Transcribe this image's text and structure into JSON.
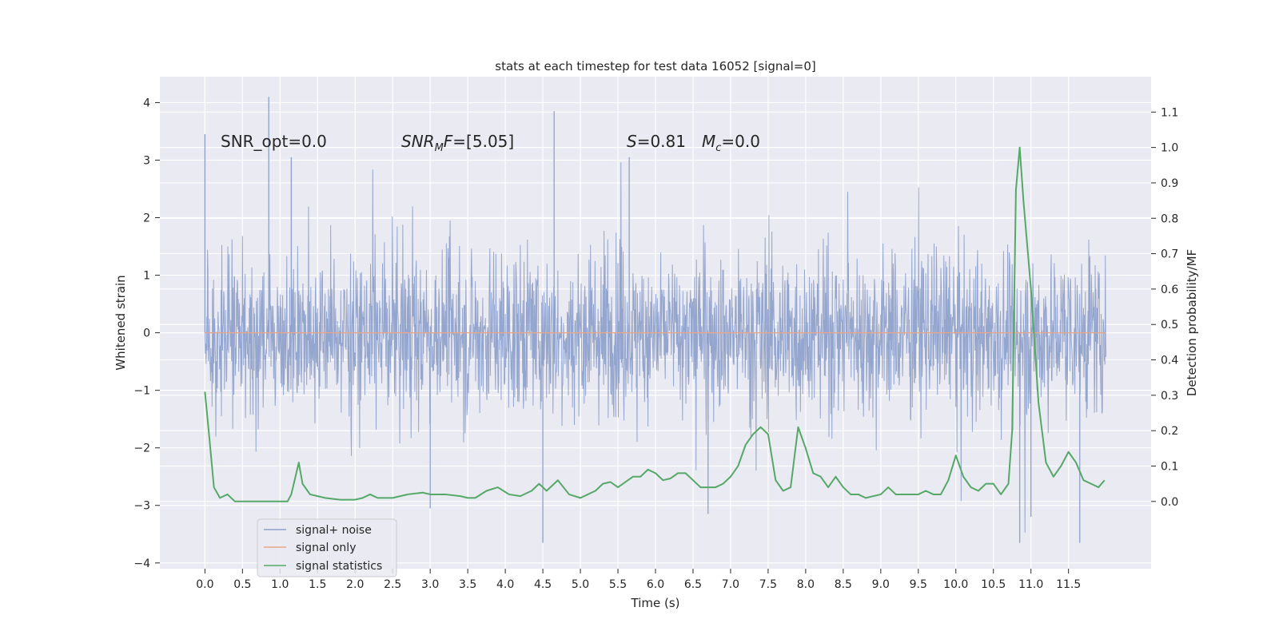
{
  "chart_data": {
    "type": "line",
    "title": "stats at each timestep for test data 16052 [signal=0]",
    "xlabel": "Time (s)",
    "ylabel": "Whitened strain",
    "y2label": "Detection probability/MF",
    "xlim": [
      -0.6,
      12.6
    ],
    "ylim": [
      -4.1,
      4.45
    ],
    "y2lim": [
      -0.19,
      1.2
    ],
    "x_ticks": [
      0.0,
      0.5,
      1.0,
      1.5,
      2.0,
      2.5,
      3.0,
      3.5,
      4.0,
      4.5,
      5.0,
      5.5,
      6.0,
      6.5,
      7.0,
      7.5,
      8.0,
      8.5,
      9.0,
      9.5,
      10.0,
      10.5,
      11.0,
      11.5
    ],
    "x_tick_labels": [
      "0.0",
      "0.5",
      "1.0",
      "1.5",
      "2.0",
      "2.5",
      "3.0",
      "3.5",
      "4.0",
      "4.5",
      "5.0",
      "5.5",
      "6.0",
      "6.5",
      "7.0",
      "7.5",
      "8.0",
      "8.5",
      "9.0",
      "9.5",
      "10.0",
      "10.5",
      "11.0",
      "11.5"
    ],
    "y_ticks": [
      4,
      3,
      2,
      1,
      0,
      -1,
      -2,
      -3,
      -4
    ],
    "y_tick_labels": [
      "4",
      "3",
      "2",
      "1",
      "0",
      "−1",
      "−2",
      "−3",
      "−4"
    ],
    "y2_ticks": [
      1.1,
      1.0,
      0.9,
      0.8,
      0.7,
      0.6,
      0.5,
      0.4,
      0.3,
      0.2,
      0.1,
      0.0
    ],
    "y2_tick_labels": [
      "1.1",
      "1.0",
      "0.9",
      "0.8",
      "0.7",
      "0.6",
      "0.5",
      "0.4",
      "0.3",
      "0.2",
      "0.1",
      "0.0"
    ],
    "annotations": {
      "snr_opt": "SNR_opt=0.0",
      "snr_mf_main": "SNR",
      "snr_mf_sub": "M",
      "snr_mf_rest": "F",
      "snr_mf_value": "=[5.05]",
      "s_sym": "S",
      "s_value": "=0.81",
      "mc_main": "M",
      "mc_sub": "c",
      "mc_value": "=0.0"
    },
    "legend": {
      "placement": "bottom-left",
      "entries": [
        "signal+ noise",
        "signal only",
        "signal statistics"
      ]
    },
    "series": [
      {
        "name": "signal+ noise",
        "axis": "left",
        "kind": "noise",
        "time_range": [
          0.0,
          12.0
        ],
        "duration_s": 12.0,
        "typical_range": [
          -1.3,
          1.4
        ],
        "max": 4.1,
        "min": -3.7,
        "spikes": [
          {
            "t": 0.0,
            "v": 3.45
          },
          {
            "t": 0.85,
            "v": 4.1
          },
          {
            "t": 1.15,
            "v": 3.05
          },
          {
            "t": 4.65,
            "v": 3.85
          },
          {
            "t": 5.65,
            "v": 3.05
          },
          {
            "t": 4.5,
            "v": -3.65
          },
          {
            "t": 10.85,
            "v": -3.65
          },
          {
            "t": 11.0,
            "v": -3.2
          },
          {
            "t": 11.65,
            "v": -3.65
          },
          {
            "t": 6.7,
            "v": -3.15
          },
          {
            "t": 3.0,
            "v": -3.05
          }
        ]
      },
      {
        "name": "signal only",
        "axis": "left",
        "x": [
          0.0,
          12.0
        ],
        "y": [
          0.0,
          0.0
        ]
      },
      {
        "name": "signal statistics",
        "axis": "right",
        "x": [
          0.0,
          0.05,
          0.12,
          0.2,
          0.25,
          0.3,
          0.4,
          0.5,
          0.6,
          0.7,
          0.8,
          0.9,
          1.0,
          1.1,
          1.15,
          1.25,
          1.3,
          1.4,
          1.5,
          1.6,
          1.8,
          2.0,
          2.1,
          2.2,
          2.3,
          2.5,
          2.7,
          2.9,
          3.0,
          3.2,
          3.4,
          3.5,
          3.6,
          3.75,
          3.9,
          4.05,
          4.2,
          4.35,
          4.45,
          4.55,
          4.7,
          4.85,
          5.0,
          5.1,
          5.2,
          5.3,
          5.4,
          5.5,
          5.6,
          5.7,
          5.8,
          5.9,
          6.0,
          6.1,
          6.2,
          6.3,
          6.4,
          6.5,
          6.6,
          6.8,
          6.9,
          7.0,
          7.1,
          7.2,
          7.3,
          7.4,
          7.5,
          7.6,
          7.7,
          7.8,
          7.9,
          8.0,
          8.1,
          8.2,
          8.3,
          8.4,
          8.5,
          8.6,
          8.7,
          8.8,
          9.0,
          9.1,
          9.2,
          9.3,
          9.5,
          9.6,
          9.7,
          9.8,
          9.9,
          10.0,
          10.1,
          10.2,
          10.3,
          10.4,
          10.5,
          10.6,
          10.7,
          10.75,
          10.8,
          10.85,
          10.9,
          11.0,
          11.1,
          11.2,
          11.3,
          11.4,
          11.5,
          11.6,
          11.7,
          11.8,
          11.9,
          11.98
        ],
        "y": [
          0.31,
          0.2,
          0.04,
          0.01,
          0.015,
          0.02,
          0.0,
          0.0,
          0.0,
          0.0,
          0.0,
          0.0,
          0.0,
          0.0,
          0.02,
          0.11,
          0.05,
          0.02,
          0.015,
          0.01,
          0.005,
          0.005,
          0.01,
          0.02,
          0.01,
          0.01,
          0.02,
          0.025,
          0.02,
          0.02,
          0.015,
          0.01,
          0.01,
          0.03,
          0.04,
          0.02,
          0.015,
          0.03,
          0.05,
          0.03,
          0.06,
          0.02,
          0.01,
          0.02,
          0.03,
          0.05,
          0.055,
          0.04,
          0.055,
          0.07,
          0.07,
          0.09,
          0.08,
          0.06,
          0.065,
          0.08,
          0.08,
          0.06,
          0.04,
          0.04,
          0.05,
          0.07,
          0.1,
          0.16,
          0.19,
          0.21,
          0.19,
          0.06,
          0.03,
          0.04,
          0.21,
          0.15,
          0.08,
          0.07,
          0.04,
          0.07,
          0.04,
          0.02,
          0.02,
          0.01,
          0.02,
          0.04,
          0.02,
          0.02,
          0.02,
          0.03,
          0.02,
          0.02,
          0.06,
          0.13,
          0.07,
          0.04,
          0.03,
          0.05,
          0.05,
          0.02,
          0.05,
          0.2,
          0.88,
          1.0,
          0.85,
          0.6,
          0.28,
          0.11,
          0.07,
          0.1,
          0.14,
          0.11,
          0.06,
          0.05,
          0.04,
          0.06
        ]
      }
    ],
    "colors": {
      "noise": "#8da0cb",
      "signal_only": "#e8a587",
      "stats": "#55a868",
      "plot_bg": "#eaeaf2",
      "grid": "#ffffff",
      "text": "#262626"
    }
  }
}
